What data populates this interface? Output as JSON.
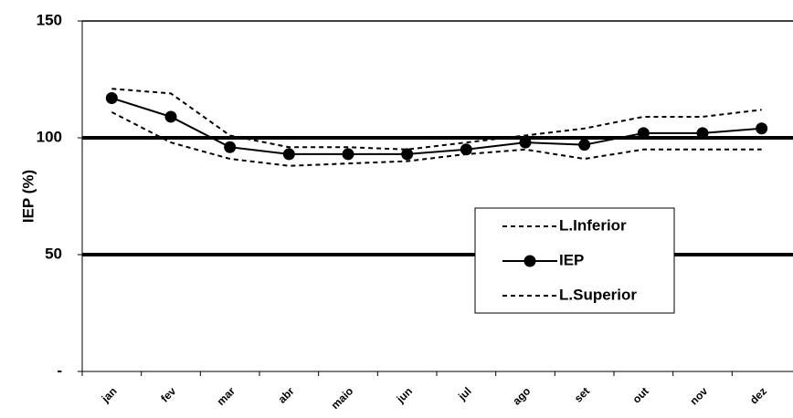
{
  "chart_data": {
    "type": "line",
    "y_label": "IEP (%)",
    "categories": [
      "jan",
      "fev",
      "mar",
      "abr",
      "maio",
      "jun",
      "jul",
      "ago",
      "set",
      "out",
      "nov",
      "dez"
    ],
    "series": [
      {
        "name": "L.Inferior",
        "color": "#000000",
        "dash": true,
        "markers": false,
        "values": [
          111,
          98,
          91,
          88,
          89,
          90,
          93,
          95,
          91,
          95,
          95,
          95
        ]
      },
      {
        "name": "IEP",
        "color": "#000000",
        "dash": false,
        "markers": true,
        "values": [
          117,
          109,
          96,
          93,
          93,
          93,
          95,
          98,
          97,
          102,
          102,
          104
        ]
      },
      {
        "name": "L.Superior",
        "color": "#000000",
        "dash": true,
        "markers": false,
        "values": [
          121,
          119,
          101,
          96,
          96,
          95,
          98,
          101,
          104,
          109,
          109,
          112
        ]
      }
    ],
    "ylim": [
      0,
      150
    ],
    "yticks": [
      {
        "value": 0,
        "label": "-"
      },
      50,
      100,
      150
    ],
    "grid": true
  }
}
